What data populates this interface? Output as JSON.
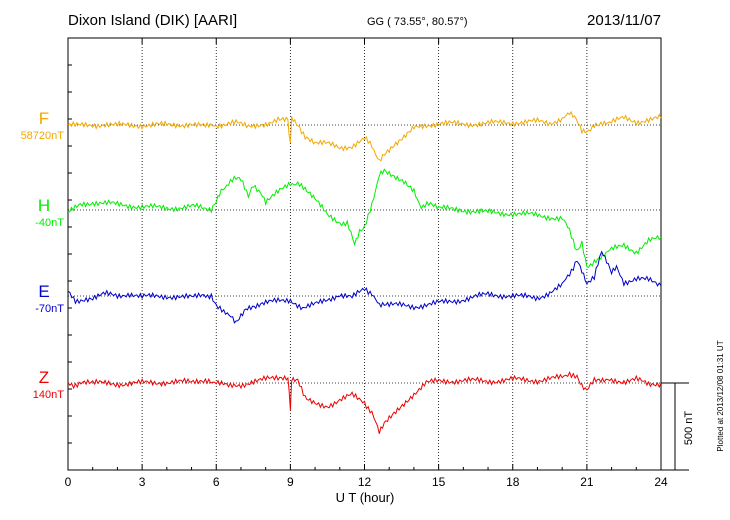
{
  "chart_data": {
    "type": "line",
    "title_station": "Dixon Island (DIK)  [AARI]",
    "title_coords": "GG ( 73.55°,  80.57°)",
    "title_date": "2013/11/07",
    "xlabel": "U T (hour)",
    "xlim": [
      0,
      24
    ],
    "x_ticks": [
      "0",
      "3",
      "6",
      "9",
      "12",
      "15",
      "18",
      "21",
      "24"
    ],
    "grid": true,
    "scale_bar_label": "500 nT",
    "scale_bar_nT": 500,
    "plotted_note": "Plotted at 2013/12/08 01:31 UT",
    "series": [
      {
        "name": "F",
        "baseline_label": "58720nT",
        "color": "#f2a900",
        "offset_nT": 0,
        "points": [
          [
            0,
            0
          ],
          [
            0.5,
            -5
          ],
          [
            1,
            0
          ],
          [
            1.5,
            5
          ],
          [
            2,
            -2
          ],
          [
            3,
            0
          ],
          [
            4,
            0
          ],
          [
            5,
            5
          ],
          [
            5.7,
            -10
          ],
          [
            6,
            -5
          ],
          [
            6.5,
            15
          ],
          [
            6.8,
            10
          ],
          [
            7.3,
            -5
          ],
          [
            8,
            10
          ],
          [
            8.5,
            30
          ],
          [
            8.9,
            40
          ],
          [
            9,
            -120
          ],
          [
            9.05,
            40
          ],
          [
            9.3,
            10
          ],
          [
            9.6,
            -75
          ],
          [
            10,
            -100
          ],
          [
            10.5,
            -110
          ],
          [
            11,
            -130
          ],
          [
            11.5,
            -120
          ],
          [
            12,
            -80
          ],
          [
            12.3,
            -120
          ],
          [
            12.6,
            -200
          ],
          [
            12.8,
            -160
          ],
          [
            13.2,
            -110
          ],
          [
            13.6,
            -70
          ],
          [
            14,
            -20
          ],
          [
            14.5,
            0
          ],
          [
            15,
            10
          ],
          [
            16,
            5
          ],
          [
            17,
            10
          ],
          [
            18,
            15
          ],
          [
            19,
            20
          ],
          [
            19.5,
            10
          ],
          [
            20,
            40
          ],
          [
            20.3,
            60
          ],
          [
            20.5,
            40
          ],
          [
            20.8,
            -30
          ],
          [
            21,
            -40
          ],
          [
            21.3,
            5
          ],
          [
            21.7,
            20
          ],
          [
            22,
            15
          ],
          [
            22.5,
            40
          ],
          [
            23,
            20
          ],
          [
            23.5,
            30
          ],
          [
            24,
            40
          ]
        ]
      },
      {
        "name": "H",
        "baseline_label": "-40nT",
        "color": "#00ee00",
        "offset_nT": 0,
        "points": [
          [
            0,
            -20
          ],
          [
            0.5,
            30
          ],
          [
            1,
            45
          ],
          [
            1.5,
            40
          ],
          [
            2,
            30
          ],
          [
            3,
            20
          ],
          [
            4,
            10
          ],
          [
            5,
            20
          ],
          [
            5.8,
            10
          ],
          [
            6,
            60
          ],
          [
            6.2,
            120
          ],
          [
            6.5,
            150
          ],
          [
            6.8,
            180
          ],
          [
            7,
            170
          ],
          [
            7.3,
            90
          ],
          [
            7.5,
            150
          ],
          [
            7.8,
            100
          ],
          [
            8,
            50
          ],
          [
            8.5,
            100
          ],
          [
            9,
            150
          ],
          [
            9.3,
            160
          ],
          [
            9.6,
            110
          ],
          [
            10,
            60
          ],
          [
            10.5,
            -30
          ],
          [
            11,
            -70
          ],
          [
            11.3,
            -80
          ],
          [
            11.6,
            -200
          ],
          [
            11.8,
            -130
          ],
          [
            12,
            -110
          ],
          [
            12.3,
            40
          ],
          [
            12.6,
            200
          ],
          [
            12.8,
            230
          ],
          [
            13.2,
            200
          ],
          [
            13.6,
            170
          ],
          [
            14,
            110
          ],
          [
            14.3,
            20
          ],
          [
            14.6,
            30
          ],
          [
            15,
            10
          ],
          [
            16,
            0
          ],
          [
            17,
            -15
          ],
          [
            18,
            -20
          ],
          [
            19,
            -30
          ],
          [
            20,
            -50
          ],
          [
            20.3,
            -120
          ],
          [
            20.6,
            -230
          ],
          [
            20.8,
            -180
          ],
          [
            21,
            -320
          ],
          [
            21.3,
            -300
          ],
          [
            21.7,
            -250
          ],
          [
            22,
            -230
          ],
          [
            22.5,
            -200
          ],
          [
            23,
            -240
          ],
          [
            23.5,
            -180
          ],
          [
            24,
            -160
          ]
        ]
      },
      {
        "name": "E",
        "baseline_label": "-70nT",
        "color": "#0000cc",
        "offset_nT": 0,
        "points": [
          [
            0,
            20
          ],
          [
            0.3,
            -20
          ],
          [
            0.6,
            -30
          ],
          [
            1,
            -10
          ],
          [
            1.5,
            10
          ],
          [
            2,
            0
          ],
          [
            2.5,
            15
          ],
          [
            3,
            -5
          ],
          [
            4,
            0
          ],
          [
            5,
            -10
          ],
          [
            5.5,
            10
          ],
          [
            5.8,
            0
          ],
          [
            6,
            -50
          ],
          [
            6.3,
            -100
          ],
          [
            6.6,
            -110
          ],
          [
            6.8,
            -150
          ],
          [
            7.2,
            -80
          ],
          [
            7.6,
            -70
          ],
          [
            8,
            -40
          ],
          [
            8.5,
            -30
          ],
          [
            9,
            -20
          ],
          [
            9.5,
            -70
          ],
          [
            10,
            -50
          ],
          [
            10.5,
            -20
          ],
          [
            11,
            10
          ],
          [
            11.5,
            -10
          ],
          [
            12,
            40
          ],
          [
            12.3,
            20
          ],
          [
            12.6,
            -60
          ],
          [
            13,
            -50
          ],
          [
            14,
            -60
          ],
          [
            15,
            -40
          ],
          [
            16,
            -20
          ],
          [
            17,
            10
          ],
          [
            18,
            0
          ],
          [
            19,
            -10
          ],
          [
            19.5,
            20
          ],
          [
            20,
            60
          ],
          [
            20.3,
            130
          ],
          [
            20.6,
            210
          ],
          [
            20.8,
            150
          ],
          [
            21,
            80
          ],
          [
            21.3,
            100
          ],
          [
            21.6,
            260
          ],
          [
            21.8,
            200
          ],
          [
            22,
            130
          ],
          [
            22.2,
            160
          ],
          [
            22.5,
            80
          ],
          [
            23,
            100
          ],
          [
            23.5,
            90
          ],
          [
            24,
            60
          ]
        ]
      },
      {
        "name": "Z",
        "baseline_label": "140nT",
        "color": "#ee0000",
        "offset_nT": 0,
        "points": [
          [
            0,
            0
          ],
          [
            0.3,
            -10
          ],
          [
            0.6,
            -5
          ],
          [
            1,
            0
          ],
          [
            2,
            -5
          ],
          [
            3,
            0
          ],
          [
            4,
            5
          ],
          [
            5,
            5
          ],
          [
            5.7,
            20
          ],
          [
            6,
            0
          ],
          [
            6.5,
            -20
          ],
          [
            7,
            -10
          ],
          [
            7.5,
            10
          ],
          [
            8,
            20
          ],
          [
            8.5,
            30
          ],
          [
            8.9,
            20
          ],
          [
            9,
            -140
          ],
          [
            9.05,
            20
          ],
          [
            9.3,
            5
          ],
          [
            9.6,
            -80
          ],
          [
            10,
            -120
          ],
          [
            10.5,
            -130
          ],
          [
            11,
            -100
          ],
          [
            11.5,
            -70
          ],
          [
            12,
            -110
          ],
          [
            12.3,
            -170
          ],
          [
            12.6,
            -290
          ],
          [
            12.8,
            -240
          ],
          [
            13.2,
            -180
          ],
          [
            13.6,
            -120
          ],
          [
            14,
            -60
          ],
          [
            14.5,
            0
          ],
          [
            15,
            10
          ],
          [
            16,
            15
          ],
          [
            17,
            10
          ],
          [
            18,
            20
          ],
          [
            19,
            15
          ],
          [
            19.5,
            25
          ],
          [
            20,
            30
          ],
          [
            20.3,
            60
          ],
          [
            20.6,
            30
          ],
          [
            20.8,
            -20
          ],
          [
            21,
            -40
          ],
          [
            21.3,
            10
          ],
          [
            21.7,
            5
          ],
          [
            22,
            20
          ],
          [
            22.5,
            10
          ],
          [
            23,
            20
          ],
          [
            23.5,
            -10
          ],
          [
            24,
            0
          ]
        ]
      }
    ]
  }
}
